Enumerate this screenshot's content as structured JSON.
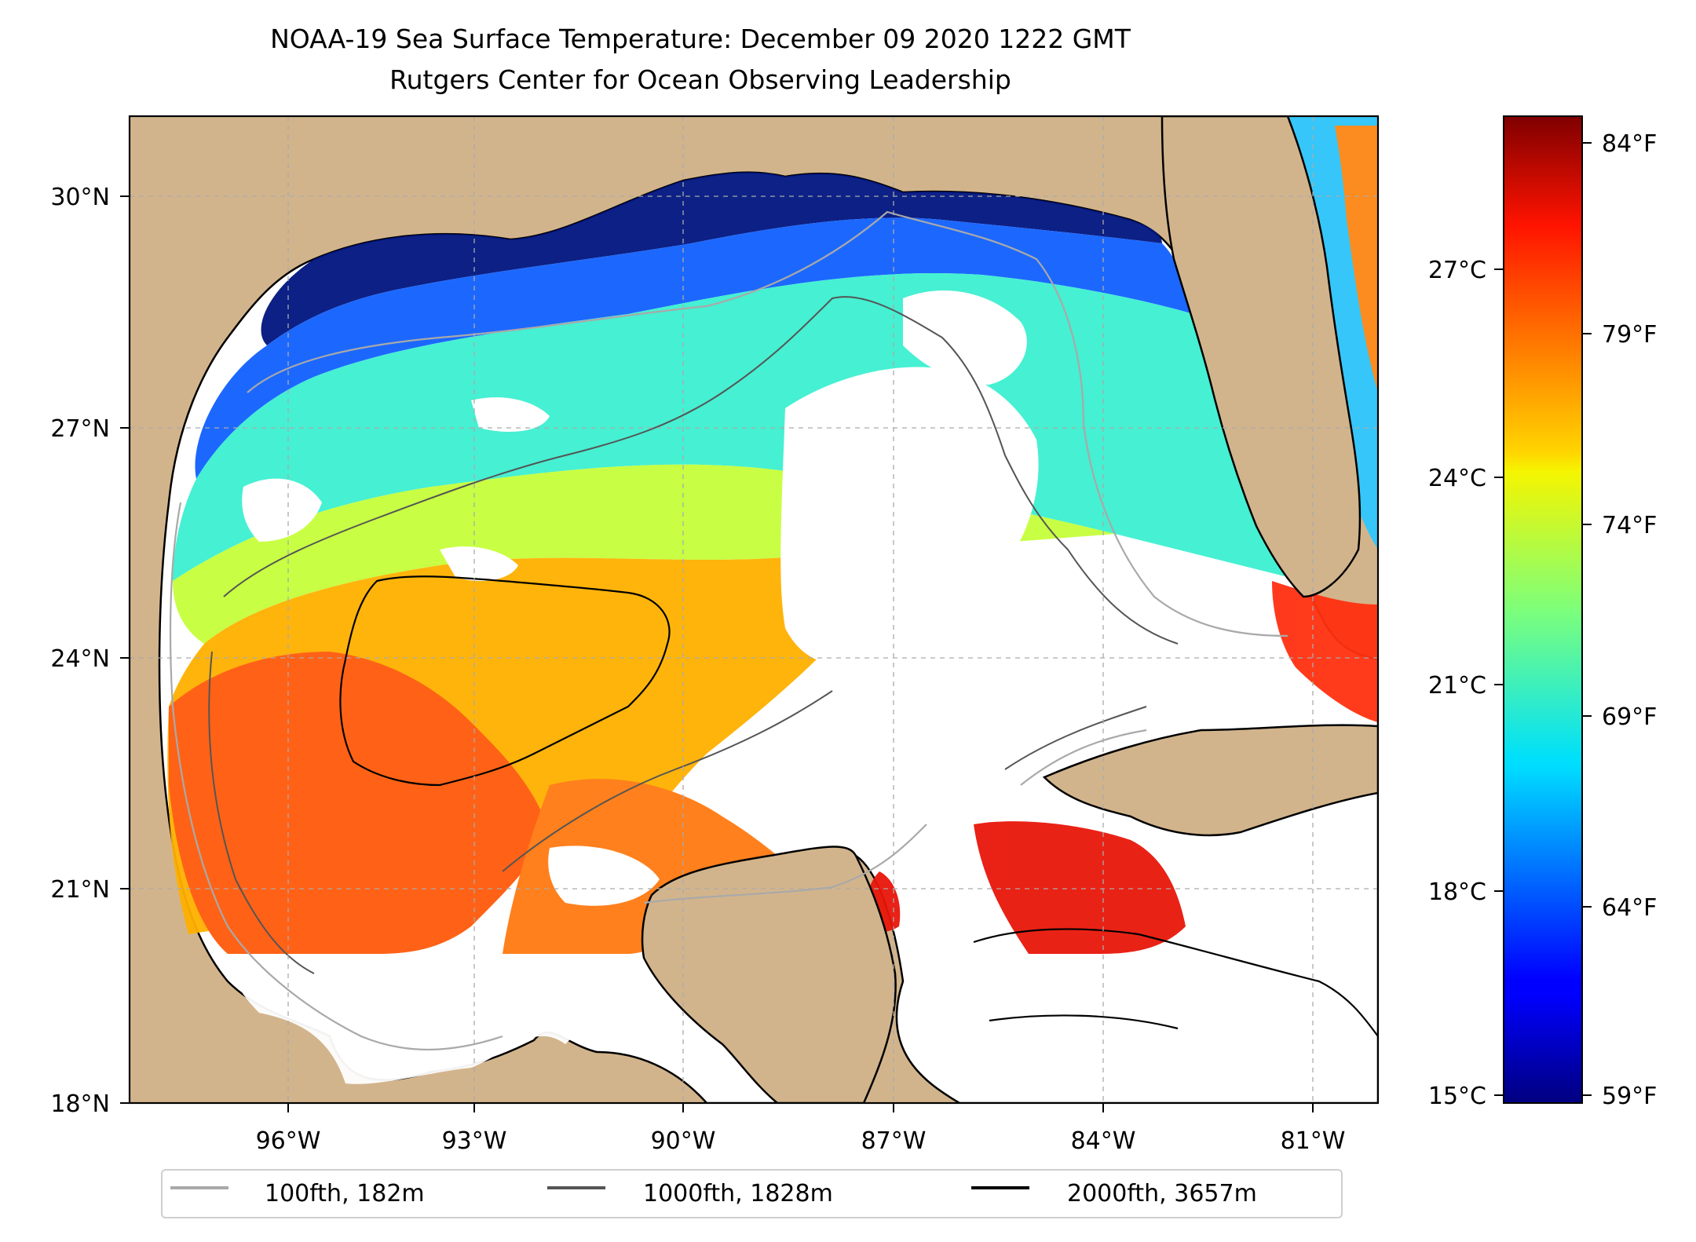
{
  "title": {
    "line1": "NOAA-19 Sea Surface Temperature: December 09 2020 1222 GMT",
    "line2": "Rutgers Center for Ocean Observing Leadership"
  },
  "map": {
    "lat_ticks": [
      "30°N",
      "27°N",
      "24°N",
      "21°N",
      "18°N"
    ],
    "lon_ticks": [
      "96°W",
      "93°W",
      "90°W",
      "87°W",
      "84°W",
      "81°W"
    ],
    "land_color": "#d2b48c",
    "no_data_color": "#ffffff",
    "coastline_color": "#000000",
    "grid_color": "#aaaaaa"
  },
  "colorbar": {
    "celsius_ticks": [
      "27°C",
      "24°C",
      "21°C",
      "18°C",
      "15°C"
    ],
    "fahrenheit_ticks": [
      "84°F",
      "79°F",
      "74°F",
      "69°F",
      "64°F",
      "59°F"
    ],
    "colormap": "jet",
    "min_c": 15,
    "max_c": 29
  },
  "legend": {
    "items": [
      {
        "label": "100fth, 182m",
        "color": "#a9a9a9"
      },
      {
        "label": "1000fth, 1828m",
        "color": "#555555"
      },
      {
        "label": "2000fth, 3657m",
        "color": "#000000"
      }
    ]
  }
}
